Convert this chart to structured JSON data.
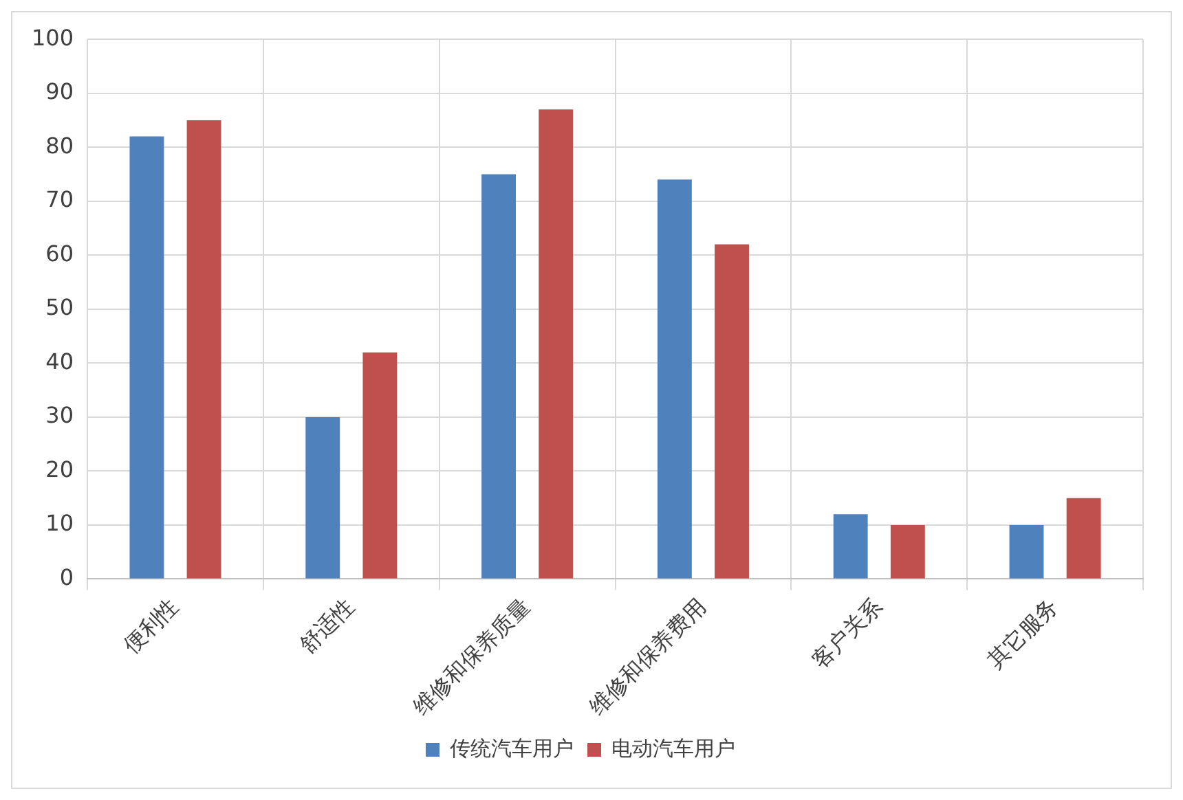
{
  "chart_data": {
    "type": "bar",
    "categories": [
      "便利性",
      "舒适性",
      "维修和保养质量",
      "维修和保养费用",
      "客户关系",
      "其它服务"
    ],
    "series": [
      {
        "name": "传统汽车用户",
        "color": "#4f81bd",
        "values": [
          82,
          30,
          75,
          74,
          12,
          10
        ]
      },
      {
        "name": "电动汽车用户",
        "color": "#c0504d",
        "values": [
          85,
          42,
          87,
          62,
          10,
          15
        ]
      }
    ],
    "ylim": [
      0,
      100
    ],
    "yticks": [
      0,
      10,
      20,
      30,
      40,
      50,
      60,
      70,
      80,
      90,
      100
    ],
    "grid": true,
    "legend": "bottom"
  }
}
